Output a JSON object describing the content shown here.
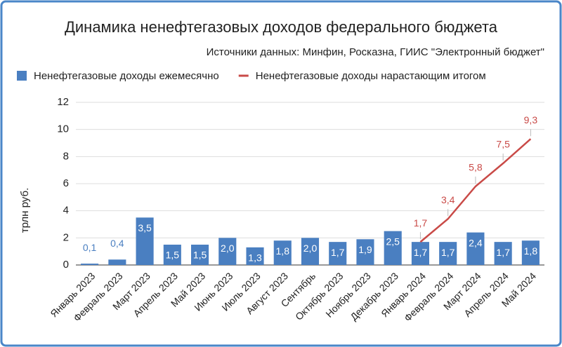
{
  "chart_data": {
    "type": "bar",
    "title": "Динамика ненефтегазовых доходов федерального бюджета",
    "subtitle": "Источники данных: Минфин, Росказна, ГИИС \"Электронный бюджет\"",
    "y_label": "трлн руб.",
    "categories": [
      "Январь 2023",
      "Февраль 2023",
      "Март 2023",
      "Апрель 2023",
      "Май 2023",
      "Июнь 2023",
      "Июль 2023",
      "Август 2023",
      "Сентябрь",
      "Октябрь 2023",
      "Ноябрь 2023",
      "Декабрь 2023",
      "Январь 2024",
      "Февраль 2024",
      "Март 2024",
      "Апрель 2024",
      "Май 2024"
    ],
    "series": [
      {
        "name": "Ненефтегазовые доходы ежемесячно",
        "type": "bar",
        "color": "#4a7fc1",
        "values": [
          0.1,
          0.4,
          3.5,
          1.5,
          1.5,
          2.0,
          1.3,
          1.8,
          2.0,
          1.7,
          1.9,
          2.5,
          1.7,
          1.7,
          2.4,
          1.7,
          1.8
        ],
        "value_labels": [
          "0,1",
          "0,4",
          "3,5",
          "1,5",
          "1,5",
          "2,0",
          "1,3",
          "1,8",
          "2,0",
          "1,7",
          "1,9",
          "2,5",
          "1,7",
          "1,7",
          "2,4",
          "1,7",
          "1,8"
        ]
      },
      {
        "name": "Ненефтегазовые доходы нарастающим итогом",
        "type": "line",
        "color": "#c94a47",
        "values": [
          null,
          null,
          null,
          null,
          null,
          null,
          null,
          null,
          null,
          null,
          null,
          null,
          1.7,
          3.4,
          5.8,
          7.5,
          9.3
        ],
        "value_labels": [
          null,
          null,
          null,
          null,
          null,
          null,
          null,
          null,
          null,
          null,
          null,
          null,
          "1,7",
          "3,4",
          "5,8",
          "7,5",
          "9,3"
        ]
      }
    ],
    "ylim": [
      0,
      12
    ],
    "yticks": [
      0,
      2,
      4,
      6,
      8,
      10,
      12
    ],
    "grid": true,
    "legend": "top"
  }
}
